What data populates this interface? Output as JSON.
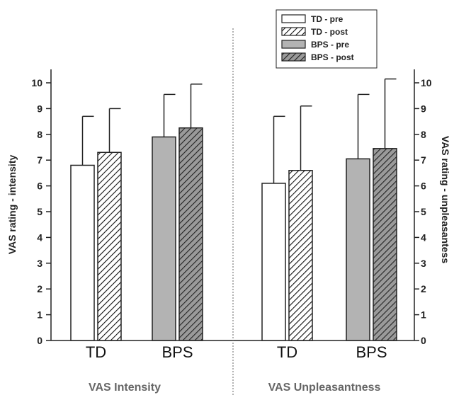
{
  "chart_data": {
    "type": "bar",
    "ylim": [
      0,
      10
    ],
    "yticks": [
      0,
      1,
      2,
      3,
      4,
      5,
      6,
      7,
      8,
      9,
      10
    ],
    "ylabel_left": "VAS rating - intensity",
    "ylabel_right": "VAS rating - unpleasantess",
    "legend": {
      "position": "top-right",
      "entries": [
        {
          "name": "TD - pre",
          "fill": "#ffffff",
          "hatch": false
        },
        {
          "name": "TD - post",
          "fill": "#ffffff",
          "hatch": true
        },
        {
          "name": "BPS - pre",
          "fill": "#b3b3b3",
          "hatch": false
        },
        {
          "name": "BPS - post",
          "fill": "#9a9a9a",
          "hatch": true
        }
      ]
    },
    "panels": [
      {
        "label": "VAS Intensity",
        "groups": [
          {
            "label": "TD",
            "bars": [
              {
                "series": "TD - pre",
                "value": 6.8,
                "error": 1.9
              },
              {
                "series": "TD - post",
                "value": 7.3,
                "error": 1.7
              }
            ]
          },
          {
            "label": "BPS",
            "bars": [
              {
                "series": "BPS - pre",
                "value": 7.9,
                "error": 1.65
              },
              {
                "series": "BPS - post",
                "value": 8.25,
                "error": 1.7
              }
            ]
          }
        ]
      },
      {
        "label": "VAS Unpleasantness",
        "groups": [
          {
            "label": "TD",
            "bars": [
              {
                "series": "TD - pre",
                "value": 6.1,
                "error": 2.6
              },
              {
                "series": "TD - post",
                "value": 6.6,
                "error": 2.5
              }
            ]
          },
          {
            "label": "BPS",
            "bars": [
              {
                "series": "BPS - pre",
                "value": 7.05,
                "error": 2.5
              },
              {
                "series": "BPS - post",
                "value": 7.45,
                "error": 2.7
              }
            ]
          }
        ]
      }
    ]
  }
}
